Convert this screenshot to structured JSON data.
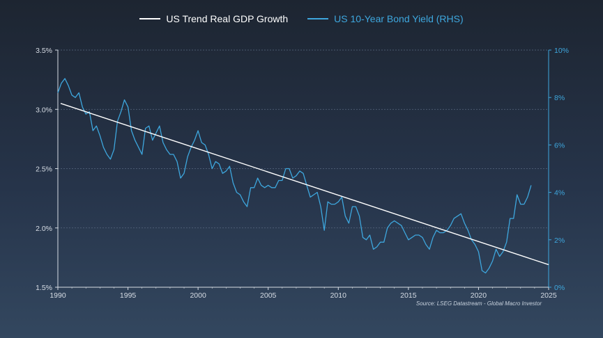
{
  "chart_data": {
    "type": "line",
    "title": "",
    "xlabel": "",
    "ylabel": "",
    "colors": {
      "gdp": "#ffffff",
      "yield": "#3ea7de",
      "axis_left": "#d7dde5",
      "axis_right": "#3ea7de",
      "grid": "#5a6a80"
    },
    "xlim": [
      1990,
      2025
    ],
    "ylim_left": [
      1.5,
      3.5
    ],
    "ylim_right": [
      0,
      10
    ],
    "x_ticks": [
      "1990",
      "1995",
      "2000",
      "2005",
      "2010",
      "2015",
      "2020",
      "2025"
    ],
    "y_left_ticks": [
      "1.5%",
      "2.0%",
      "2.5%",
      "3.0%",
      "3.5%"
    ],
    "y_right_ticks": [
      "0%",
      "2%",
      "4%",
      "6%",
      "8%",
      "10%"
    ],
    "grid": "horizontal dashed",
    "legend_position": "top-center",
    "series": [
      {
        "name": "US Trend Real GDP Growth",
        "axis": "left",
        "x": [
          1990.2,
          2025
        ],
        "values": [
          3.05,
          1.69
        ]
      },
      {
        "name": "US 10-Year Bond Yield (RHS)",
        "axis": "right",
        "x": [
          1990.0,
          1990.25,
          1990.5,
          1990.75,
          1991.0,
          1991.25,
          1991.5,
          1991.75,
          1992.0,
          1992.25,
          1992.5,
          1992.75,
          1993.0,
          1993.25,
          1993.5,
          1993.75,
          1994.0,
          1994.25,
          1994.5,
          1994.75,
          1995.0,
          1995.25,
          1995.5,
          1995.75,
          1996.0,
          1996.25,
          1996.5,
          1996.75,
          1997.0,
          1997.25,
          1997.5,
          1997.75,
          1998.0,
          1998.25,
          1998.5,
          1998.75,
          1999.0,
          1999.25,
          1999.5,
          1999.75,
          2000.0,
          2000.25,
          2000.5,
          2000.75,
          2001.0,
          2001.25,
          2001.5,
          2001.75,
          2002.0,
          2002.25,
          2002.5,
          2002.75,
          2003.0,
          2003.25,
          2003.5,
          2003.75,
          2004.0,
          2004.25,
          2004.5,
          2004.75,
          2005.0,
          2005.25,
          2005.5,
          2005.75,
          2006.0,
          2006.25,
          2006.5,
          2006.75,
          2007.0,
          2007.25,
          2007.5,
          2007.75,
          2008.0,
          2008.25,
          2008.5,
          2008.75,
          2009.0,
          2009.25,
          2009.5,
          2009.75,
          2010.0,
          2010.25,
          2010.5,
          2010.75,
          2011.0,
          2011.25,
          2011.5,
          2011.75,
          2012.0,
          2012.25,
          2012.5,
          2012.75,
          2013.0,
          2013.25,
          2013.5,
          2013.75,
          2014.0,
          2014.25,
          2014.5,
          2014.75,
          2015.0,
          2015.25,
          2015.5,
          2015.75,
          2016.0,
          2016.25,
          2016.5,
          2016.75,
          2017.0,
          2017.25,
          2017.5,
          2017.75,
          2018.0,
          2018.25,
          2018.5,
          2018.75,
          2019.0,
          2019.25,
          2019.5,
          2019.75,
          2020.0,
          2020.25,
          2020.5,
          2020.75,
          2021.0,
          2021.25,
          2021.5,
          2021.75,
          2022.0,
          2022.25,
          2022.5,
          2022.75,
          2023.0,
          2023.25,
          2023.5,
          2023.75
        ],
        "values": [
          8.2,
          8.6,
          8.8,
          8.5,
          8.1,
          8.0,
          8.2,
          7.6,
          7.3,
          7.4,
          6.6,
          6.8,
          6.4,
          5.9,
          5.6,
          5.4,
          5.8,
          7.0,
          7.4,
          7.9,
          7.6,
          6.6,
          6.2,
          5.9,
          5.6,
          6.7,
          6.8,
          6.2,
          6.5,
          6.8,
          6.1,
          5.8,
          5.6,
          5.6,
          5.3,
          4.6,
          4.8,
          5.5,
          5.9,
          6.2,
          6.6,
          6.1,
          6.0,
          5.6,
          5.0,
          5.3,
          5.2,
          4.8,
          4.9,
          5.1,
          4.4,
          4.0,
          3.9,
          3.6,
          3.4,
          4.2,
          4.2,
          4.6,
          4.3,
          4.2,
          4.3,
          4.2,
          4.2,
          4.5,
          4.5,
          5.0,
          5.0,
          4.6,
          4.7,
          4.9,
          4.8,
          4.3,
          3.8,
          3.9,
          4.0,
          3.4,
          2.4,
          3.6,
          3.5,
          3.5,
          3.6,
          3.8,
          3.0,
          2.7,
          3.4,
          3.4,
          3.0,
          2.1,
          2.0,
          2.2,
          1.6,
          1.7,
          1.9,
          1.9,
          2.5,
          2.7,
          2.8,
          2.7,
          2.6,
          2.3,
          2.0,
          2.1,
          2.2,
          2.2,
          2.1,
          1.8,
          1.6,
          2.1,
          2.4,
          2.3,
          2.3,
          2.4,
          2.6,
          2.9,
          3.0,
          3.1,
          2.7,
          2.4,
          2.0,
          1.8,
          1.5,
          0.7,
          0.6,
          0.8,
          1.1,
          1.6,
          1.3,
          1.5,
          1.9,
          2.9,
          2.9,
          3.9,
          3.5,
          3.5,
          3.8,
          4.3
        ]
      }
    ]
  },
  "source_note": "Source: LSEG Datastream - Global Macro Investor"
}
